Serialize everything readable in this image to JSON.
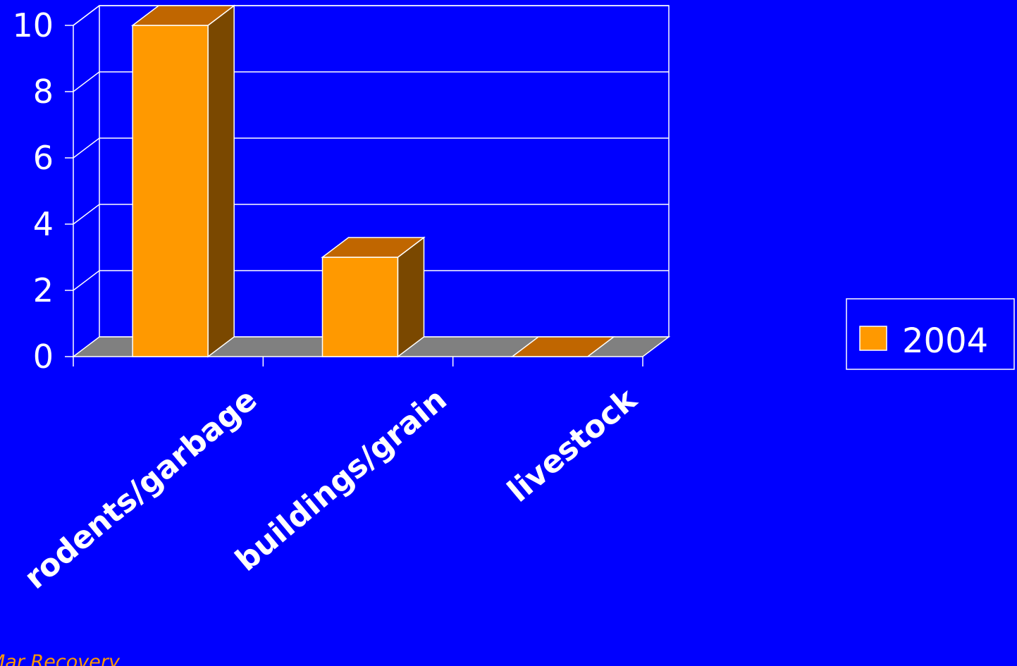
{
  "chart_data": {
    "type": "bar",
    "categories": [
      "rodents/garbage",
      "buildings/grain",
      "livestock"
    ],
    "series": [
      {
        "name": "2004",
        "values": [
          10,
          3,
          0
        ]
      }
    ],
    "ylim": [
      0,
      10
    ],
    "yticks": [
      0,
      2,
      4,
      6,
      8,
      10
    ],
    "grid": true,
    "legend": "right",
    "style": "3d"
  },
  "colors": {
    "background": "#0000FF",
    "bar_front": "#FF9900",
    "bar_top": "#C06600",
    "bar_side": "#7A4800",
    "floor": "#808080",
    "lines": "#FFFFFF",
    "footer": "#FF9900"
  },
  "footer": {
    "text": "Mar Recovery"
  }
}
